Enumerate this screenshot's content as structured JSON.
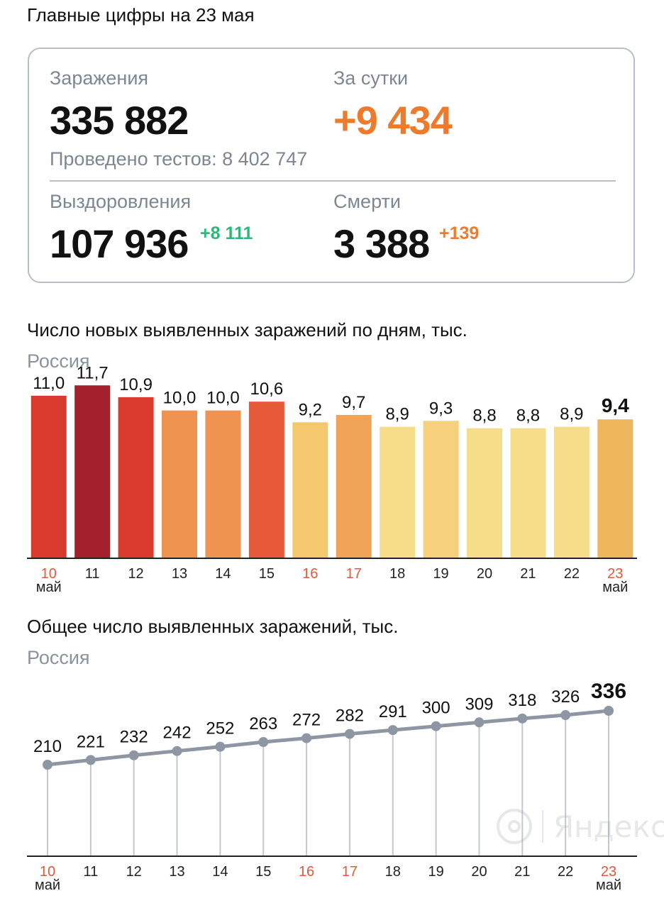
{
  "header": {
    "title": "Главные цифры на 23 мая"
  },
  "summary": {
    "infections": {
      "label": "Заражения",
      "value": "335 882"
    },
    "daily": {
      "label": "За сутки",
      "value": "+9 434"
    },
    "tests": "Проведено тестов: 8 402 747",
    "recoveries": {
      "label": "Выздоровления",
      "value": "107 936",
      "delta": "+8 111"
    },
    "deaths": {
      "label": "Смерти",
      "value": "3 388",
      "delta": "+139"
    }
  },
  "colors": {
    "accent_orange": "#ee7b2c",
    "accent_green": "#2fb67c",
    "weekend_red": "#e05a3a",
    "line_gray": "#8e96a3"
  },
  "chart_data": [
    {
      "type": "bar",
      "title": "Число новых выявленных заражений по дням, тыс.",
      "subtitle": "Россия",
      "categories": [
        "10",
        "11",
        "12",
        "13",
        "14",
        "15",
        "16",
        "17",
        "18",
        "19",
        "20",
        "21",
        "22",
        "23"
      ],
      "month_labels": {
        "first": "май",
        "last": "май"
      },
      "weekend_categories": [
        "10",
        "16",
        "17",
        "23"
      ],
      "values": [
        11.0,
        11.7,
        10.9,
        10.0,
        10.0,
        10.6,
        9.2,
        9.7,
        8.9,
        9.3,
        8.8,
        8.8,
        8.9,
        9.4
      ],
      "value_labels": [
        "11,0",
        "11,7",
        "10,9",
        "10,0",
        "10,0",
        "10,6",
        "9,2",
        "9,7",
        "8,9",
        "9,3",
        "8,8",
        "8,8",
        "8,9",
        "9,4"
      ],
      "bar_colors": [
        "#d93a2d",
        "#a3212c",
        "#d93a2d",
        "#ee9450",
        "#ee9450",
        "#e65a3a",
        "#f6c86e",
        "#f0a458",
        "#f5dd8a",
        "#f6d07c",
        "#f5dd8a",
        "#f5dd8a",
        "#f5dd8a",
        "#f0b65c"
      ],
      "highlight_last": true,
      "ylim": [
        0,
        12
      ]
    },
    {
      "type": "line",
      "title": "Общее число выявленных заражений, тыс.",
      "subtitle": "Россия",
      "categories": [
        "10",
        "11",
        "12",
        "13",
        "14",
        "15",
        "16",
        "17",
        "18",
        "19",
        "20",
        "21",
        "22",
        "23"
      ],
      "month_labels": {
        "first": "май",
        "last": "май"
      },
      "weekend_categories": [
        "10",
        "16",
        "17",
        "23"
      ],
      "values": [
        210,
        221,
        232,
        242,
        252,
        263,
        272,
        282,
        291,
        300,
        309,
        318,
        326,
        336
      ],
      "value_labels": [
        "210",
        "221",
        "232",
        "242",
        "252",
        "263",
        "272",
        "282",
        "291",
        "300",
        "309",
        "318",
        "326",
        "336"
      ],
      "highlight_last": true,
      "ylim": [
        0,
        380
      ]
    }
  ],
  "watermark": {
    "text": "Яндекс"
  }
}
